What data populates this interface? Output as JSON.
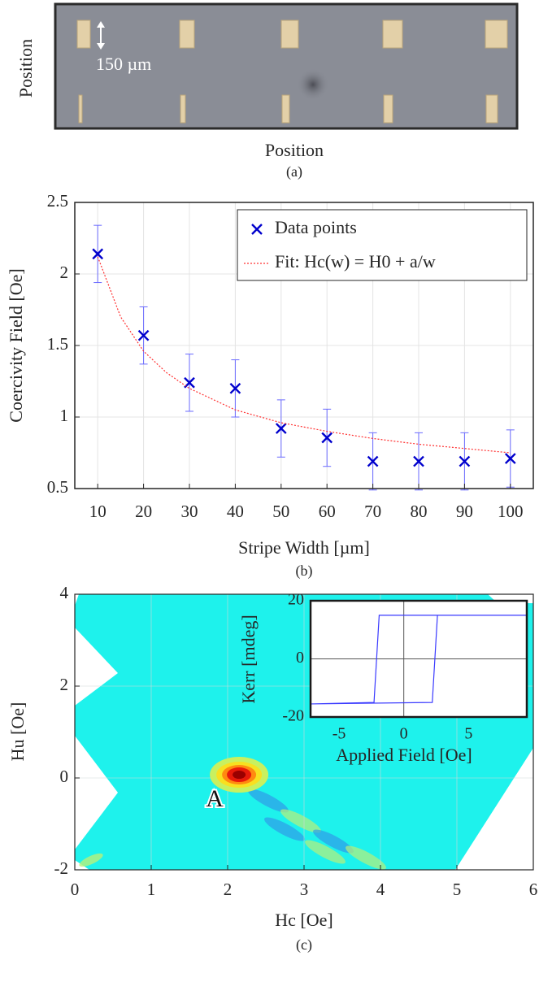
{
  "chart_data": [
    {
      "type": "image",
      "caption": "(a)",
      "xlabel": "Position",
      "ylabel": "Position",
      "annotation": "150 µm"
    },
    {
      "type": "scatter",
      "caption": "(b)",
      "xlabel": "Stripe Width [µm]",
      "ylabel": "Coercivity Field [Oe]",
      "xlim": [
        5,
        105
      ],
      "ylim": [
        0.5,
        2.5
      ],
      "xticks": [
        10,
        20,
        30,
        40,
        50,
        60,
        70,
        80,
        90,
        100
      ],
      "yticks": [
        0.5,
        1,
        1.5,
        2,
        2.5
      ],
      "grid": true,
      "legend": "upper right",
      "series": [
        {
          "name": "Data points",
          "color": "#0000cc",
          "marker": "x",
          "x": [
            10,
            20,
            30,
            40,
            50,
            60,
            70,
            80,
            90,
            100
          ],
          "values": [
            2.14,
            1.57,
            1.24,
            1.2,
            0.92,
            0.855,
            0.69,
            0.69,
            0.69,
            0.71
          ],
          "errors": [
            0.2,
            0.2,
            0.2,
            0.2,
            0.2,
            0.2,
            0.2,
            0.2,
            0.2,
            0.2
          ]
        },
        {
          "name": "Fit: Hc(w) = H0 + a/w",
          "color": "#ff3030",
          "marker": "dotted-line",
          "x": [
            10,
            15,
            20,
            25,
            30,
            40,
            50,
            60,
            70,
            80,
            90,
            100
          ],
          "values": [
            2.12,
            1.7,
            1.46,
            1.31,
            1.2,
            1.05,
            0.96,
            0.9,
            0.85,
            0.81,
            0.78,
            0.75
          ]
        }
      ]
    },
    {
      "type": "heatmap",
      "caption": "(c)",
      "xlabel": "Hc [Oe]",
      "ylabel": "Hu [Oe]",
      "xlim": [
        0,
        6
      ],
      "ylim": [
        -2,
        4
      ],
      "xticks": [
        0,
        1,
        2,
        3,
        4,
        5,
        6
      ],
      "yticks": [
        -2,
        0,
        2,
        4
      ],
      "grid": true,
      "peak": {
        "x": 2.15,
        "y": 0.07,
        "label": "A"
      },
      "inset": {
        "type": "line",
        "xlabel": "Applied Field [Oe]",
        "ylabel": "Kerr [mdeg]",
        "xlim": [
          -7.2,
          9.5
        ],
        "ylim": [
          -20,
          20
        ],
        "xticks": [
          -5,
          0,
          5
        ],
        "yticks": [
          -20,
          0,
          20
        ],
        "series": [
          {
            "color": "#3a3aff",
            "x": [
              -7.2,
              2.2,
              2.4,
              2.6,
              9.5,
              -1.9,
              -2.1,
              -2.3,
              -7.2
            ],
            "values": [
              -15.5,
              -15,
              0,
              15,
              15,
              15,
              0,
              -15,
              -15.5
            ]
          }
        ]
      }
    }
  ]
}
